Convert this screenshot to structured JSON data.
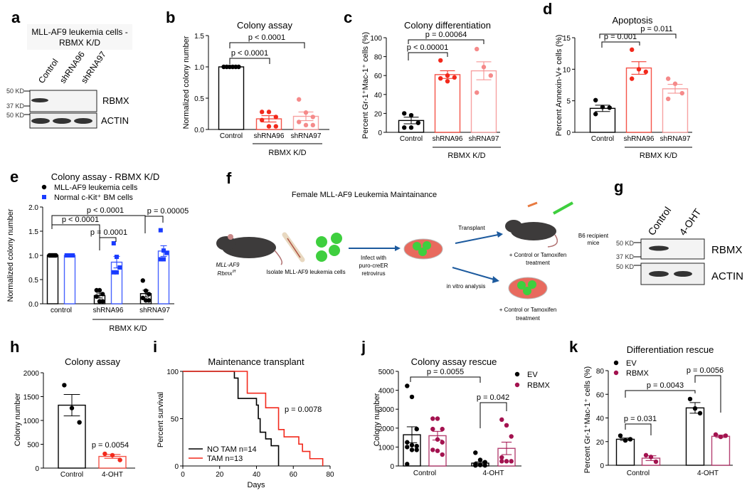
{
  "panel_letters": [
    "a",
    "b",
    "c",
    "d",
    "e",
    "f",
    "g",
    "h",
    "i",
    "j",
    "k"
  ],
  "colors": {
    "black": "#000000",
    "shRNA96": "#f2291c",
    "shRNA97": "#f58a8a",
    "normal": "#1a3cff",
    "tam": "#f2291c",
    "rbmx": "#a3124f"
  },
  "blot_a": {
    "title_line1": "MLL-AF9 leukemia cells -",
    "title_line2": "RBMX K/D",
    "lanes": [
      "Control",
      "shRNA96",
      "shRNA97"
    ],
    "markers": [
      "50 KD",
      "37 KD",
      "50 KD"
    ],
    "bands": [
      "RBMX",
      "ACTIN"
    ]
  },
  "blot_g": {
    "lanes": [
      "Control",
      "4-OHT"
    ],
    "markers": [
      "50 KD",
      "37 KD",
      "50 KD"
    ],
    "bands": [
      "RBMX",
      "ACTIN"
    ]
  },
  "diagram_f": {
    "title": "Female MLL-AF9 Leukemia Maintainance",
    "genotype_line1": "MLL-AF9",
    "genotype_line2": "Rbmx",
    "genotype_sup": "f/f",
    "isolate": "Isolate MLL-AF9 leukemia cells",
    "infect_1": "Infect with",
    "infect_2": "puro-creER",
    "infect_3": "retrovirus",
    "transplant": "Transplant",
    "recipient_1": "B6 recipient",
    "recipient_2": "mice",
    "treat_1": "+ Control or Tamoxifen",
    "treat_2": "treatment",
    "invitro": "in vitro analysis",
    "treat_3": "+ Control or Tamoxifen",
    "treat_4": "treatment"
  },
  "chart_data": [
    {
      "id": "b",
      "type": "bar",
      "title": "Colony assay",
      "ylabel": "Normalized colony number",
      "xlabel": "",
      "ylim": [
        0,
        1.5
      ],
      "yticks": [
        "0.0",
        "0.5",
        "1.0",
        "1.5"
      ],
      "ytick_values": [
        0,
        0.5,
        1,
        1.5
      ],
      "categories": [
        "Control",
        "shRNA96",
        "shRNA97"
      ],
      "group_label": "RBMX K/D",
      "series": [
        {
          "name": "",
          "bar_colors": [
            "#000000",
            "#f2291c",
            "#f58a8a"
          ],
          "values": [
            1.0,
            0.17,
            0.21
          ],
          "sem": [
            0,
            0.05,
            0.07
          ],
          "points": [
            [
              1,
              1,
              1,
              1,
              1,
              1
            ],
            [
              0.28,
              0.28,
              0.2,
              0.15,
              0.05,
              0.05
            ],
            [
              0.48,
              0.27,
              0.2,
              0.12,
              0.07,
              0.07
            ]
          ]
        }
      ],
      "annotations": [
        "p < 0.0001",
        "p < 0.0001"
      ]
    },
    {
      "id": "c",
      "type": "bar",
      "title": "Colony differentiation",
      "ylabel": "Percent Gr-1⁺Mac-1⁺ cells (%)",
      "xlabel": "",
      "ylim": [
        0,
        100
      ],
      "yticks": [
        "0",
        "20",
        "40",
        "60",
        "80",
        "100"
      ],
      "ytick_values": [
        0,
        20,
        40,
        60,
        80,
        100
      ],
      "categories": [
        "Control",
        "shRNA96",
        "shRNA97"
      ],
      "group_label": "RBMX K/D",
      "series": [
        {
          "name": "",
          "bar_colors": [
            "#000000",
            "#f2291c",
            "#f58a8a"
          ],
          "values": [
            12.5,
            61,
            65
          ],
          "sem": [
            3.5,
            4,
            9.5
          ],
          "points": [
            [
              20,
              18,
              10,
              5,
              5
            ],
            [
              76,
              60,
              58,
              57,
              54
            ],
            [
              88,
              69,
              60,
              42
            ]
          ]
        }
      ],
      "annotations": [
        "p < 0.00001",
        "p = 0.00064"
      ]
    },
    {
      "id": "d",
      "type": "bar",
      "title": "Apoptosis",
      "ylabel": "Percent Annexin-V+ cells (%)",
      "xlabel": "",
      "ylim": [
        0,
        15
      ],
      "yticks": [
        "0",
        "5",
        "10",
        "15"
      ],
      "ytick_values": [
        0,
        5,
        10,
        15
      ],
      "categories": [
        "Control",
        "shRNA96",
        "shRNA97"
      ],
      "group_label": "RBMX K/D",
      "series": [
        {
          "name": "",
          "bar_colors": [
            "#000000",
            "#f2291c",
            "#f58a8a"
          ],
          "values": [
            3.8,
            10.2,
            6.9
          ],
          "sem": [
            0.5,
            1.0,
            0.7
          ],
          "points": [
            [
              5.1,
              4.0,
              3.9,
              2.9
            ],
            [
              13.1,
              10.0,
              9.6,
              8.5
            ],
            [
              8.5,
              7.7,
              6.2,
              5.3
            ]
          ]
        }
      ],
      "annotations": [
        "p = 0.001",
        "p = 0.011"
      ]
    },
    {
      "id": "e",
      "type": "bar",
      "title": "Colony assay - RBMX K/D",
      "ylabel": "Normalized colony number",
      "xlabel": "",
      "ylim": [
        0,
        2.0
      ],
      "yticks": [
        "0.0",
        "0.5",
        "1.0",
        "1.5",
        "2.0"
      ],
      "ytick_values": [
        0,
        0.5,
        1,
        1.5,
        2
      ],
      "categories": [
        "control",
        "shRNA96",
        "shRNA97"
      ],
      "group_label": "RBMX K/D",
      "legend": "top-left",
      "series": [
        {
          "name": "MLL-AF9 leukemia cells",
          "marker": "circle",
          "bar_colors": [
            "#000000",
            "#000000",
            "#000000"
          ],
          "values": [
            1.0,
            0.17,
            0.21
          ],
          "sem": [
            0,
            0.05,
            0.07
          ],
          "points": [
            [
              1,
              1,
              1,
              1,
              1,
              1
            ],
            [
              0.28,
              0.28,
              0.2,
              0.15,
              0.05,
              0.05
            ],
            [
              0.48,
              0.27,
              0.2,
              0.12,
              0.07,
              0.07
            ]
          ]
        },
        {
          "name": "Normal c-Kit⁺ BM cells",
          "marker": "square",
          "bar_colors": [
            "#1a3cff",
            "#1a3cff",
            "#1a3cff"
          ],
          "values": [
            1.0,
            0.86,
            1.09
          ],
          "sem": [
            0,
            0.12,
            0.11
          ],
          "points": [
            [
              1,
              1,
              1,
              1,
              1
            ],
            [
              1.25,
              0.97,
              0.75,
              0.65,
              0.65
            ],
            [
              1.52,
              1.1,
              1.05,
              0.92,
              0.92
            ]
          ]
        }
      ],
      "annotations": [
        "p < 0.0001",
        "p < 0.0001",
        "p = 0.0001",
        "p = 0.00005"
      ]
    },
    {
      "id": "h",
      "type": "bar",
      "title": "Colony assay",
      "ylabel": "Colony number",
      "xlabel": "",
      "ylim": [
        0,
        2000
      ],
      "yticks": [
        "0",
        "500",
        "1000",
        "1500",
        "2000"
      ],
      "ytick_values": [
        0,
        500,
        1000,
        1500,
        2000
      ],
      "categories": [
        "Control",
        "4-OHT"
      ],
      "series": [
        {
          "name": "",
          "bar_colors": [
            "#000000",
            "#f2291c"
          ],
          "values": [
            1320,
            245
          ],
          "sem": [
            225,
            40
          ],
          "points": [
            [
              1740,
              1260,
              960
            ],
            [
              300,
              270,
              170
            ]
          ]
        }
      ],
      "annotations": [
        "p = 0.0054"
      ]
    },
    {
      "id": "i",
      "type": "line",
      "subtype": "kaplan-meier",
      "title": "Maintenance transplant",
      "ylabel": "Percent survival",
      "xlabel": "Days",
      "xlim": [
        0,
        80
      ],
      "ylim": [
        0,
        100
      ],
      "xticks": [
        "0",
        "20",
        "40",
        "60",
        "80"
      ],
      "xtick_values": [
        0,
        20,
        40,
        60,
        80
      ],
      "yticks": [
        "0",
        "50",
        "100"
      ],
      "ytick_values": [
        0,
        50,
        100
      ],
      "legend": "bottom-left",
      "series": [
        {
          "name": "NO TAM n=14",
          "color": "#000000",
          "steps": [
            [
              0,
              100
            ],
            [
              28,
              92.9
            ],
            [
              30,
              71.4
            ],
            [
              40,
              64.3
            ],
            [
              41,
              50
            ],
            [
              42,
              35.7
            ],
            [
              45,
              28.6
            ],
            [
              48,
              21.4
            ],
            [
              52,
              0
            ]
          ]
        },
        {
          "name": "TAM n=13",
          "color": "#f2291c",
          "steps": [
            [
              0,
              100
            ],
            [
              35,
              76.9
            ],
            [
              45,
              61.5
            ],
            [
              52,
              38.5
            ],
            [
              55,
              30.8
            ],
            [
              63,
              23.1
            ],
            [
              65,
              15.4
            ],
            [
              69,
              7.7
            ],
            [
              76,
              0
            ]
          ]
        }
      ],
      "annotations": [
        "p = 0.0078"
      ]
    },
    {
      "id": "j",
      "type": "bar",
      "title": "Colony assay rescue",
      "ylabel": "Colony number",
      "xlabel": "",
      "ylim": [
        0,
        5000
      ],
      "yticks": [
        "0",
        "1000",
        "2000",
        "3000",
        "4000",
        "5000"
      ],
      "ytick_values": [
        0,
        1000,
        2000,
        3000,
        4000,
        5000
      ],
      "categories": [
        "Control",
        "4-OHT"
      ],
      "legend": "top-right",
      "series": [
        {
          "name": "EV",
          "marker": "circle",
          "bar_colors": [
            "#000000",
            "#000000"
          ],
          "values": [
            1650,
            150
          ],
          "sem": [
            420,
            70
          ],
          "points": [
            [
              4230,
              3650,
              1950,
              1250,
              1100,
              1050,
              1000,
              850,
              850,
              100
            ],
            [
              700,
              320,
              200,
              100,
              50,
              30,
              30
            ]
          ]
        },
        {
          "name": "RBMX",
          "marker": "circle",
          "bar_colors": [
            "#a3124f",
            "#a3124f"
          ],
          "values": [
            1600,
            930
          ],
          "sem": [
            230,
            330
          ],
          "points": [
            [
              2500,
              2500,
              1950,
              1950,
              1400,
              1250,
              850,
              800,
              600
            ],
            [
              2450,
              2150,
              1560,
              450,
              250,
              250,
              250
            ]
          ]
        }
      ],
      "annotations": [
        "p = 0.0055",
        "p = 0.042"
      ]
    },
    {
      "id": "k",
      "type": "bar",
      "title": "Differentiation rescue",
      "ylabel": "Percent Gr-1⁺Mac-1⁺ cells (%)",
      "xlabel": "",
      "ylim": [
        0,
        80
      ],
      "yticks": [
        "0",
        "20",
        "40",
        "60",
        "80"
      ],
      "ytick_values": [
        0,
        20,
        40,
        60,
        80
      ],
      "categories": [
        "Control",
        "4-OHT"
      ],
      "legend": "top-left",
      "series": [
        {
          "name": "EV",
          "marker": "circle",
          "bar_colors": [
            "#000000",
            "#000000"
          ],
          "values": [
            22,
            48.5
          ],
          "sem": [
            1,
            4.5
          ],
          "points": [
            [
              25,
              21,
              22
            ],
            [
              56,
              48,
              44
            ]
          ]
        },
        {
          "name": "RBMX",
          "marker": "circle",
          "bar_colors": [
            "#a3124f",
            "#a3124f"
          ],
          "values": [
            6,
            24.5
          ],
          "sem": [
            2,
            1
          ],
          "points": [
            [
              8.5,
              7,
              3
            ],
            [
              26,
              24,
              25
            ]
          ]
        }
      ],
      "annotations": [
        "p = 0.031",
        "p = 0.0043",
        "p = 0.0056"
      ]
    }
  ]
}
